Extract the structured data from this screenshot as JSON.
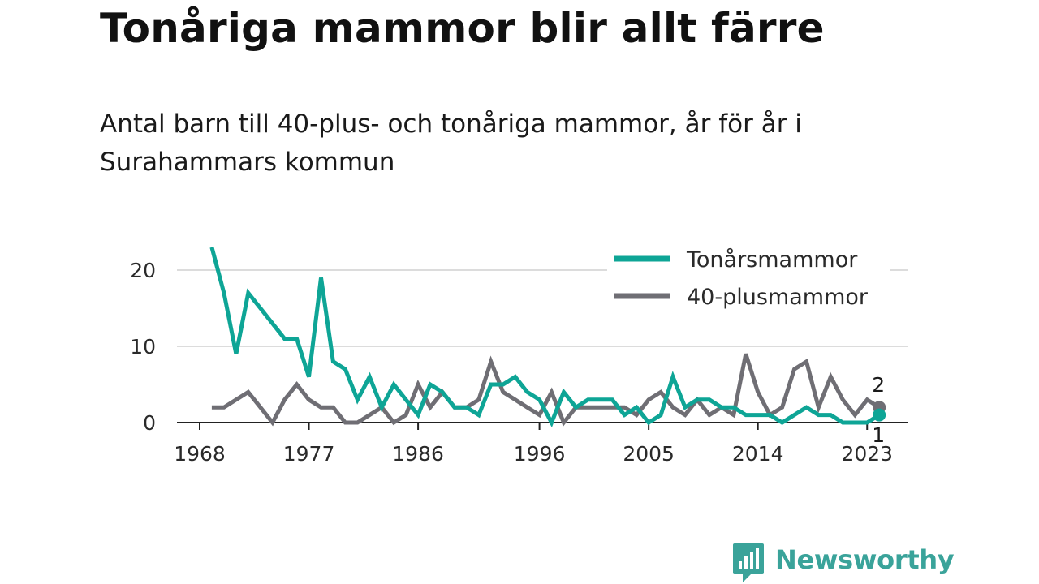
{
  "title": "Tonåriga mammor blir allt färre",
  "subtitle": "Antal barn till 40-plus- och tonåriga mammor, år för år i Surahammars kommun",
  "brand": {
    "name": "Newsworthy",
    "icon": "newsworthy-logo-icon"
  },
  "colors": {
    "teen": "#0ea596",
    "plus40": "#6f6e74",
    "grid": "#dcdcdc",
    "axis": "#222222"
  },
  "chart_data": {
    "type": "line",
    "title": "Tonåriga mammor blir allt färre",
    "x": [
      1969,
      1970,
      1971,
      1972,
      1973,
      1974,
      1975,
      1976,
      1977,
      1978,
      1979,
      1980,
      1981,
      1982,
      1983,
      1984,
      1985,
      1986,
      1987,
      1988,
      1989,
      1990,
      1991,
      1992,
      1993,
      1994,
      1995,
      1996,
      1997,
      1998,
      1999,
      2000,
      2001,
      2002,
      2003,
      2004,
      2005,
      2006,
      2007,
      2008,
      2009,
      2010,
      2011,
      2012,
      2013,
      2014,
      2015,
      2016,
      2017,
      2018,
      2019,
      2020,
      2021,
      2022,
      2023,
      2024
    ],
    "series": [
      {
        "name": "Tonårsmammor",
        "color": "#0ea596",
        "values": [
          23,
          17,
          9,
          17,
          15,
          13,
          11,
          11,
          6,
          19,
          8,
          7,
          3,
          6,
          2,
          5,
          3,
          1,
          5,
          4,
          2,
          2,
          1,
          5,
          5,
          6,
          4,
          3,
          0,
          4,
          2,
          3,
          3,
          3,
          1,
          2,
          0,
          1,
          6,
          2,
          3,
          3,
          2,
          2,
          1,
          1,
          1,
          0,
          1,
          2,
          1,
          1,
          0,
          0,
          0,
          1
        ]
      },
      {
        "name": "40-plusmammor",
        "color": "#6f6e74",
        "values": [
          2,
          2,
          3,
          4,
          2,
          0,
          3,
          5,
          3,
          2,
          2,
          0,
          0,
          1,
          2,
          0,
          1,
          5,
          2,
          4,
          2,
          2,
          3,
          8,
          4,
          3,
          2,
          1,
          4,
          0,
          2,
          2,
          2,
          2,
          2,
          1,
          3,
          4,
          2,
          1,
          3,
          1,
          2,
          1,
          9,
          4,
          1,
          2,
          7,
          8,
          2,
          6,
          3,
          1,
          3,
          2
        ]
      }
    ],
    "x_ticks": [
      "1968",
      "1977",
      "1986",
      "1996",
      "2005",
      "2014",
      "2023"
    ],
    "y_ticks": [
      "0",
      "10",
      "20"
    ],
    "xlim": [
      1968,
      2024
    ],
    "ylim": [
      0,
      25
    ],
    "end_labels": {
      "plus40": "2",
      "teen": "1"
    },
    "grid": true,
    "legend_position": "top-right",
    "xlabel": "",
    "ylabel": ""
  }
}
